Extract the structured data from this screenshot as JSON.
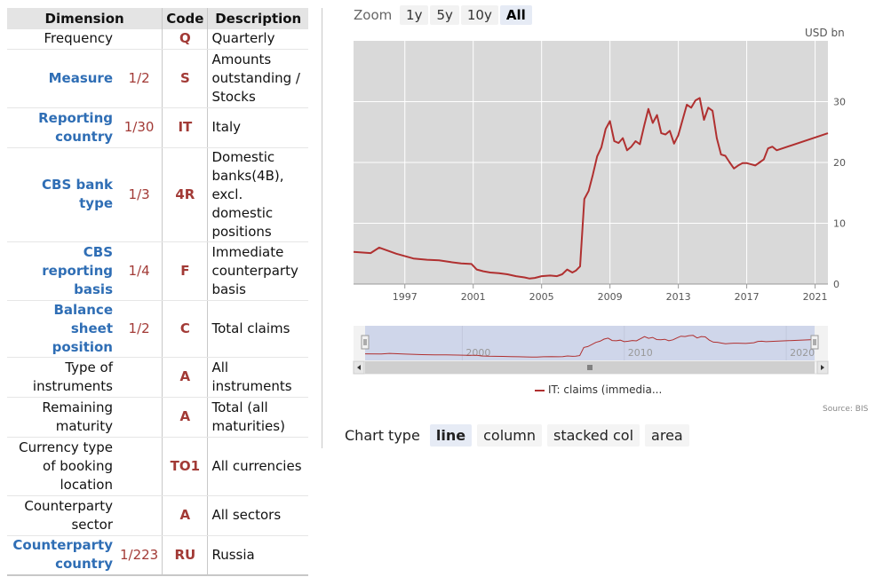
{
  "table": {
    "headers": {
      "dimension": "Dimension",
      "code": "Code",
      "description": "Description"
    },
    "rows": [
      {
        "name": "Frequency",
        "count": "",
        "code": "Q",
        "desc": "Quarterly",
        "link": false
      },
      {
        "name": "Measure",
        "count": "1/2",
        "code": "S",
        "desc": "Amounts outstanding / Stocks",
        "link": true
      },
      {
        "name": "Reporting country",
        "count": "1/30",
        "code": "IT",
        "desc": "Italy",
        "link": true
      },
      {
        "name": "CBS bank type",
        "count": "1/3",
        "code": "4R",
        "desc": "Domestic banks(4B), excl. domestic positions",
        "link": true
      },
      {
        "name": "CBS reporting basis",
        "count": "1/4",
        "code": "F",
        "desc": "Immediate counterparty basis",
        "link": true
      },
      {
        "name": "Balance sheet position",
        "count": "1/2",
        "code": "C",
        "desc": "Total claims",
        "link": true
      },
      {
        "name": "Type of instruments",
        "count": "",
        "code": "A",
        "desc": "All instruments",
        "link": false
      },
      {
        "name": "Remaining maturity",
        "count": "",
        "code": "A",
        "desc": "Total (all maturities)",
        "link": false
      },
      {
        "name": "Currency type of booking location",
        "count": "",
        "code": "TO1",
        "desc": "All currencies",
        "link": false
      },
      {
        "name": "Counterparty sector",
        "count": "",
        "code": "A",
        "desc": "All sectors",
        "link": false
      },
      {
        "name": "Counterparty country",
        "count": "1/223",
        "code": "RU",
        "desc": "Russia",
        "link": true
      }
    ]
  },
  "zoom": {
    "label": "Zoom",
    "buttons": [
      "1y",
      "5y",
      "10y",
      "All"
    ],
    "active": "All"
  },
  "chart_type": {
    "label": "Chart type",
    "buttons": [
      "line",
      "column",
      "stacked col",
      "area"
    ],
    "active": "line"
  },
  "source": "Source: BIS",
  "colors": {
    "series": "#b03030",
    "plot_bg": "#d9d9d9",
    "navigator_bg": "#cfd6ea",
    "link": "#2f6eb5",
    "code": "#a23a36"
  },
  "chart_data": {
    "type": "line",
    "unit": "USD bn",
    "x_ticks": [
      "1997",
      "2001",
      "2005",
      "2009",
      "2013",
      "2017",
      "2021"
    ],
    "y_ticks": [
      0,
      10,
      20,
      30
    ],
    "ylim": [
      0,
      40
    ],
    "xlim": [
      1994.0,
      2021.75
    ],
    "grid": true,
    "legend": "bottom",
    "series": [
      {
        "name": "IT: claims (immedia...",
        "x": [
          1994.0,
          1995.0,
          1995.5,
          1996.5,
          1997.5,
          1998.3,
          1999.0,
          1999.7,
          2000.3,
          2000.9,
          2001.2,
          2001.6,
          2002.0,
          2002.5,
          2003.0,
          2003.5,
          2004.0,
          2004.3,
          2004.6,
          2005.0,
          2005.5,
          2005.9,
          2006.2,
          2006.5,
          2006.8,
          2007.0,
          2007.25,
          2007.5,
          2007.75,
          2008.0,
          2008.25,
          2008.5,
          2008.75,
          2009.0,
          2009.25,
          2009.5,
          2009.75,
          2010.0,
          2010.25,
          2010.5,
          2010.75,
          2011.0,
          2011.25,
          2011.5,
          2011.75,
          2012.0,
          2012.25,
          2012.5,
          2012.75,
          2013.0,
          2013.25,
          2013.5,
          2013.75,
          2014.0,
          2014.25,
          2014.5,
          2014.75,
          2015.0,
          2015.25,
          2015.5,
          2015.75,
          2016.0,
          2016.25,
          2016.5,
          2016.75,
          2017.0,
          2017.25,
          2017.5,
          2017.75,
          2018.0,
          2018.25,
          2018.5,
          2018.75,
          2021.75
        ],
        "values": [
          5.3,
          5.1,
          6.0,
          5.0,
          4.2,
          4.0,
          3.9,
          3.6,
          3.4,
          3.3,
          2.4,
          2.1,
          1.9,
          1.8,
          1.6,
          1.3,
          1.1,
          0.9,
          1.0,
          1.3,
          1.4,
          1.3,
          1.6,
          2.4,
          1.9,
          2.2,
          2.9,
          14.0,
          15.3,
          18.0,
          21.0,
          22.5,
          25.5,
          26.8,
          23.5,
          23.2,
          24.0,
          22.0,
          22.6,
          23.5,
          23.0,
          26.0,
          28.8,
          26.5,
          27.8,
          24.8,
          24.6,
          25.2,
          23.1,
          24.5,
          27.0,
          29.5,
          29.0,
          30.2,
          30.6,
          27.0,
          29.0,
          28.5,
          24.0,
          21.3,
          21.1,
          20.0,
          19.0,
          19.5,
          19.9,
          19.9,
          19.7,
          19.5,
          20.0,
          20.5,
          22.3,
          22.6,
          22.0,
          24.8
        ]
      }
    ],
    "navigator": {
      "x_ticks": [
        "2000",
        "2010",
        "2020"
      ]
    }
  }
}
